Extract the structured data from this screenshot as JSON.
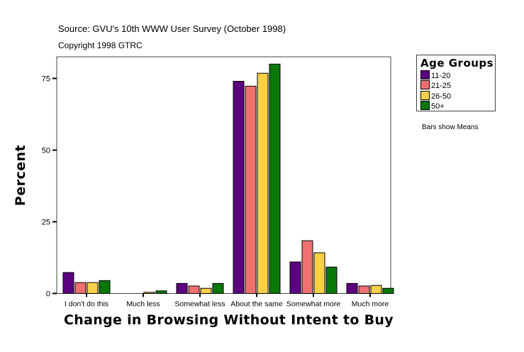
{
  "header": {
    "source": "Source: GVU's 10th WWW User Survey (October 1998)",
    "copyright": "Copyright 1998 GTRC"
  },
  "note": "Bars show Means",
  "chart_data": {
    "type": "bar",
    "title": "",
    "xlabel": "Change in Browsing Without Intent to Buy",
    "ylabel": "Percent",
    "ylim": [
      0,
      82
    ],
    "yticks": [
      0,
      25,
      50,
      75
    ],
    "grid": false,
    "legend_title": "Age Groups",
    "legend_placement": "right",
    "categories": [
      "I don't do this",
      "Much less",
      "Somewhat less",
      "About the same",
      "Somewhat more",
      "Much more"
    ],
    "series": [
      {
        "name": "11-20",
        "color": "#5c0080",
        "values": [
          7.3,
          0,
          3.5,
          74.0,
          11.0,
          3.5
        ]
      },
      {
        "name": "21-25",
        "color": "#f07070",
        "values": [
          3.8,
          0,
          2.6,
          72.3,
          18.4,
          2.6
        ]
      },
      {
        "name": "26-50",
        "color": "#f8d048",
        "values": [
          3.8,
          0.4,
          1.8,
          76.8,
          14.2,
          2.8
        ]
      },
      {
        "name": "50+",
        "color": "#087808",
        "values": [
          4.5,
          0.9,
          3.5,
          80.0,
          9.2,
          1.8
        ]
      }
    ]
  }
}
